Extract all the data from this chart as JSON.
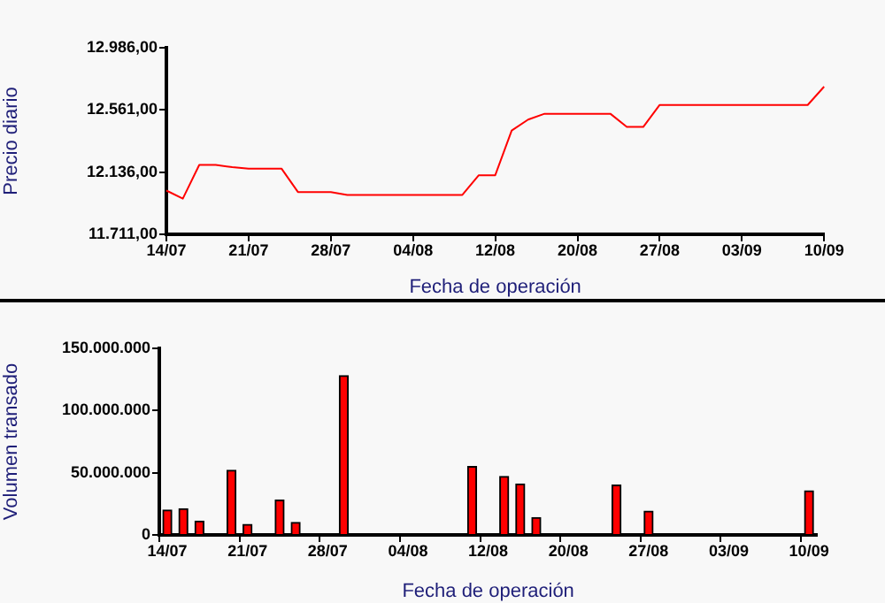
{
  "chart_data": [
    {
      "type": "line",
      "xlabel": "Fecha de operación",
      "ylabel": "Precio diario",
      "categories": [
        "14/07",
        null,
        null,
        null,
        null,
        "21/07",
        null,
        null,
        null,
        null,
        "28/07",
        null,
        null,
        null,
        null,
        "04/08",
        null,
        null,
        null,
        null,
        "12/08",
        null,
        null,
        null,
        null,
        "20/08",
        null,
        null,
        null,
        null,
        "27/08",
        null,
        null,
        null,
        null,
        "03/09",
        null,
        null,
        null,
        null,
        "10/09"
      ],
      "series": [
        {
          "color": "#ff0000",
          "values": [
            12010,
            11955,
            12185,
            12185,
            12170,
            12160,
            12160,
            12160,
            12000,
            12000,
            12000,
            11980,
            11980,
            11980,
            11980,
            11980,
            11980,
            11980,
            11980,
            12115,
            12115,
            12420,
            12495,
            12535,
            12535,
            12535,
            12535,
            12535,
            12445,
            12445,
            12595,
            12595,
            12595,
            12595,
            12595,
            12595,
            12595,
            12595,
            12595,
            12595,
            12720
          ]
        }
      ],
      "ylim": [
        11711,
        12986
      ],
      "yticks": [
        {
          "value": 11711,
          "label": "11.711,00"
        },
        {
          "value": 12136,
          "label": "12.136,00"
        },
        {
          "value": 12561,
          "label": "12.561,00"
        },
        {
          "value": 12986,
          "label": "12.986,00"
        }
      ],
      "marker": "none"
    },
    {
      "type": "bar",
      "xlabel": "Fecha de operación",
      "ylabel": "Volumen transado",
      "categories": [
        "14/07",
        null,
        null,
        null,
        null,
        "21/07",
        null,
        null,
        null,
        null,
        "28/07",
        null,
        null,
        null,
        null,
        "04/08",
        null,
        null,
        null,
        null,
        "12/08",
        null,
        null,
        null,
        null,
        "20/08",
        null,
        null,
        null,
        null,
        "27/08",
        null,
        null,
        null,
        null,
        "03/09",
        null,
        null,
        null,
        null,
        "10/09"
      ],
      "series": [
        {
          "color": "#ff0000",
          "values": [
            20000000,
            21000000,
            11000000,
            null,
            52000000,
            8500000,
            null,
            28000000,
            10000000,
            null,
            null,
            128000000,
            null,
            null,
            null,
            null,
            null,
            null,
            null,
            55000000,
            null,
            47000000,
            41000000,
            14000000,
            null,
            null,
            null,
            null,
            40000000,
            null,
            19000000,
            null,
            null,
            null,
            null,
            null,
            null,
            null,
            null,
            null,
            35500000
          ]
        }
      ],
      "ylim": [
        0,
        150000000
      ],
      "yticks": [
        0,
        {
          "value": 50000000,
          "label": "50.000.000"
        },
        {
          "value": 100000000,
          "label": "100.000.000"
        },
        {
          "value": 150000000,
          "label": "150.000.000"
        }
      ]
    }
  ]
}
